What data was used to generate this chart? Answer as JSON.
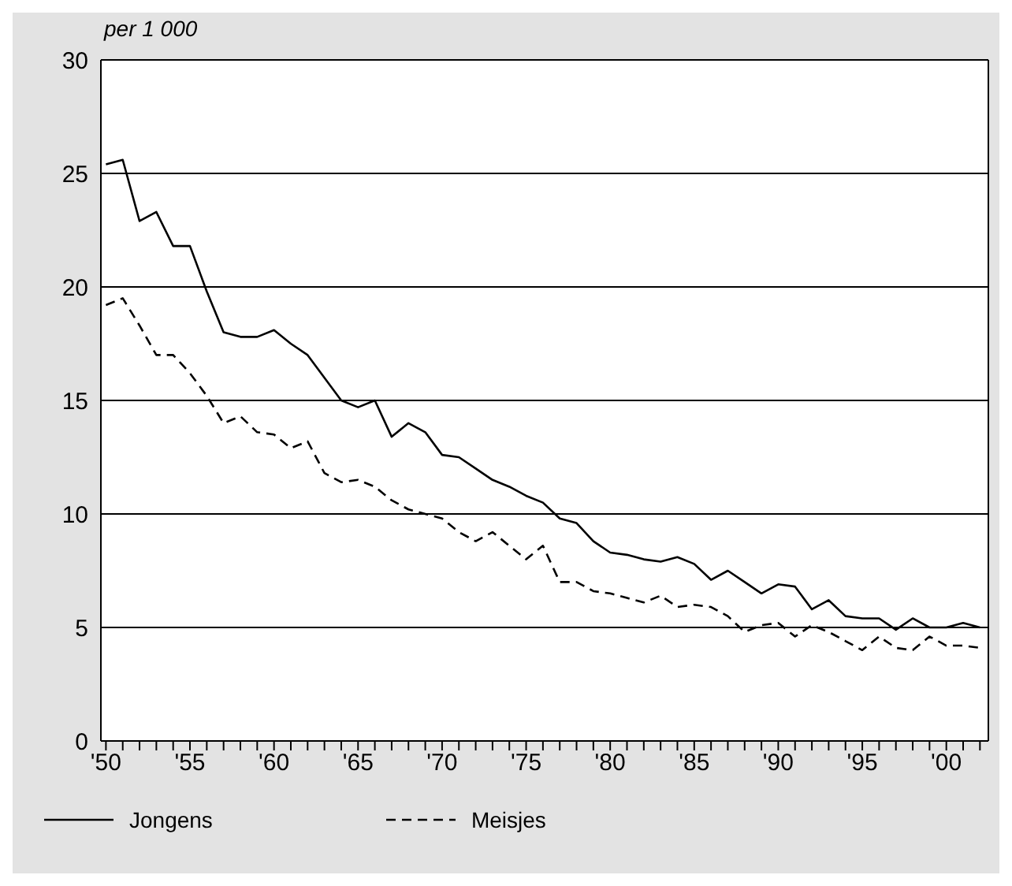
{
  "chart_data": {
    "type": "line",
    "ylabel": "per 1 000",
    "x": [
      1950,
      1951,
      1952,
      1953,
      1954,
      1955,
      1956,
      1957,
      1958,
      1959,
      1960,
      1961,
      1962,
      1963,
      1964,
      1965,
      1966,
      1967,
      1968,
      1969,
      1970,
      1971,
      1972,
      1973,
      1974,
      1975,
      1976,
      1977,
      1978,
      1979,
      1980,
      1981,
      1982,
      1983,
      1984,
      1985,
      1986,
      1987,
      1988,
      1989,
      1990,
      1991,
      1992,
      1993,
      1994,
      1995,
      1996,
      1997,
      1998,
      1999,
      2000,
      2001,
      2002
    ],
    "series": [
      {
        "name": "Jongens",
        "color": "#000000",
        "line_style": "solid",
        "values": [
          25.4,
          25.6,
          22.9,
          23.3,
          21.8,
          21.8,
          19.8,
          18.0,
          17.8,
          17.8,
          18.1,
          17.5,
          17.0,
          16.0,
          15.0,
          14.7,
          15.0,
          13.4,
          14.0,
          13.6,
          12.6,
          12.5,
          12.0,
          11.5,
          11.2,
          10.8,
          10.5,
          9.8,
          9.6,
          8.8,
          8.3,
          8.2,
          8.0,
          7.9,
          8.1,
          7.8,
          7.1,
          7.5,
          7.0,
          6.5,
          6.9,
          6.8,
          5.8,
          6.2,
          5.5,
          5.4,
          5.4,
          4.9,
          5.4,
          5.0,
          5.0,
          5.2,
          5.0
        ]
      },
      {
        "name": "Meisjes",
        "color": "#000000",
        "line_style": "dashed",
        "values": [
          19.2,
          19.5,
          18.3,
          17.0,
          17.0,
          16.2,
          15.2,
          14.0,
          14.3,
          13.6,
          13.5,
          12.9,
          13.2,
          11.8,
          11.4,
          11.5,
          11.2,
          10.6,
          10.2,
          10.0,
          9.8,
          9.2,
          8.8,
          9.2,
          8.6,
          8.0,
          8.6,
          7.0,
          7.0,
          6.6,
          6.5,
          6.3,
          6.1,
          6.4,
          5.9,
          6.0,
          5.9,
          5.5,
          4.8,
          5.1,
          5.2,
          4.6,
          5.1,
          4.8,
          4.4,
          4.0,
          4.6,
          4.1,
          4.0,
          4.6,
          4.2,
          4.2,
          4.1
        ]
      }
    ],
    "xlim": [
      1949.7,
      2002.5
    ],
    "xticks": [
      {
        "value": 1950,
        "label": "'50"
      },
      {
        "value": 1951,
        "label": null
      },
      {
        "value": 1952,
        "label": null
      },
      {
        "value": 1953,
        "label": null
      },
      {
        "value": 1954,
        "label": null
      },
      {
        "value": 1955,
        "label": "'55"
      },
      {
        "value": 1956,
        "label": null
      },
      {
        "value": 1957,
        "label": null
      },
      {
        "value": 1958,
        "label": null
      },
      {
        "value": 1959,
        "label": null
      },
      {
        "value": 1960,
        "label": "'60"
      },
      {
        "value": 1961,
        "label": null
      },
      {
        "value": 1962,
        "label": null
      },
      {
        "value": 1963,
        "label": null
      },
      {
        "value": 1964,
        "label": null
      },
      {
        "value": 1965,
        "label": "'65"
      },
      {
        "value": 1966,
        "label": null
      },
      {
        "value": 1967,
        "label": null
      },
      {
        "value": 1968,
        "label": null
      },
      {
        "value": 1969,
        "label": null
      },
      {
        "value": 1970,
        "label": "'70"
      },
      {
        "value": 1971,
        "label": null
      },
      {
        "value": 1972,
        "label": null
      },
      {
        "value": 1973,
        "label": null
      },
      {
        "value": 1974,
        "label": null
      },
      {
        "value": 1975,
        "label": "'75"
      },
      {
        "value": 1976,
        "label": null
      },
      {
        "value": 1977,
        "label": null
      },
      {
        "value": 1978,
        "label": null
      },
      {
        "value": 1979,
        "label": null
      },
      {
        "value": 1980,
        "label": "'80"
      },
      {
        "value": 1981,
        "label": null
      },
      {
        "value": 1982,
        "label": null
      },
      {
        "value": 1983,
        "label": null
      },
      {
        "value": 1984,
        "label": null
      },
      {
        "value": 1985,
        "label": "'85"
      },
      {
        "value": 1986,
        "label": null
      },
      {
        "value": 1987,
        "label": null
      },
      {
        "value": 1988,
        "label": null
      },
      {
        "value": 1989,
        "label": null
      },
      {
        "value": 1990,
        "label": "'90"
      },
      {
        "value": 1991,
        "label": null
      },
      {
        "value": 1992,
        "label": null
      },
      {
        "value": 1993,
        "label": null
      },
      {
        "value": 1994,
        "label": null
      },
      {
        "value": 1995,
        "label": "'95"
      },
      {
        "value": 1996,
        "label": null
      },
      {
        "value": 1997,
        "label": null
      },
      {
        "value": 1998,
        "label": null
      },
      {
        "value": 1999,
        "label": null
      },
      {
        "value": 2000,
        "label": "'00"
      },
      {
        "value": 2001,
        "label": null
      },
      {
        "value": 2002,
        "label": null
      }
    ],
    "ylim": [
      0,
      30
    ],
    "yticks": [
      0,
      5,
      10,
      15,
      20,
      25,
      30
    ],
    "grid": "y",
    "legend": "bottom",
    "marker": "none"
  }
}
